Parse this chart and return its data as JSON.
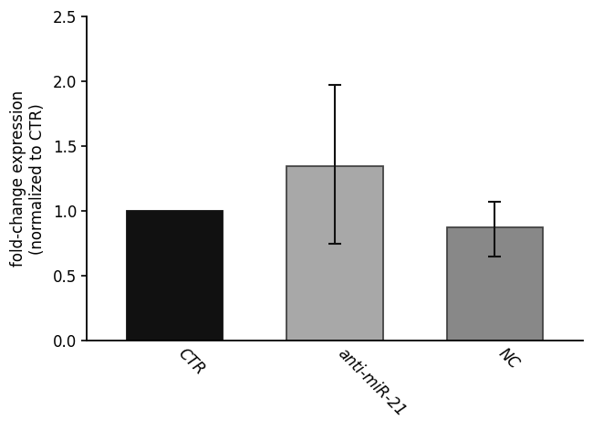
{
  "categories": [
    "CTR",
    "anti-miR-21",
    "NC"
  ],
  "values": [
    1.0,
    1.35,
    0.875
  ],
  "errors_upper": [
    0.0,
    0.62,
    0.2
  ],
  "errors_lower": [
    0.0,
    0.6,
    0.225
  ],
  "bar_colors": [
    "#111111",
    "#a8a8a8",
    "#888888"
  ],
  "bar_edgecolors": [
    "#111111",
    "#444444",
    "#444444"
  ],
  "ylabel": "fold-change expression\n(normalized to CTR)",
  "ylim": [
    0.0,
    2.5
  ],
  "yticks": [
    0.0,
    0.5,
    1.0,
    1.5,
    2.0,
    2.5
  ],
  "background_color": "#ffffff",
  "bar_width": 0.6,
  "capsize": 5,
  "error_linewidth": 1.5,
  "error_color": "#111111",
  "tick_label_rotation": -45,
  "ylabel_fontsize": 12,
  "tick_fontsize": 12
}
